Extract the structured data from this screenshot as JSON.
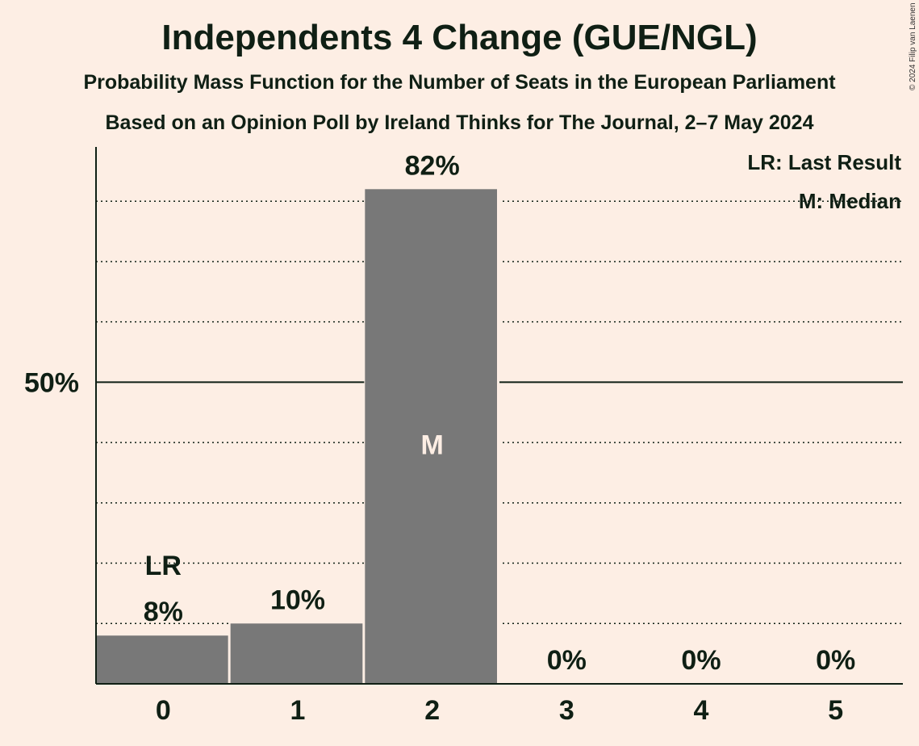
{
  "title": "Independents 4 Change (GUE/NGL)",
  "subtitle1": "Probability Mass Function for the Number of Seats in the European Parliament",
  "subtitle2": "Based on an Opinion Poll by Ireland Thinks for The Journal, 2–7 May 2024",
  "copyright": "© 2024 Filip van Laenen",
  "legend": {
    "last_result": "LR: Last Result",
    "median": "M: Median"
  },
  "colors": {
    "background": "#fdeee4",
    "bar": "#787878",
    "text": "#0f1f14"
  },
  "chart_data": {
    "type": "bar",
    "categories": [
      "0",
      "1",
      "2",
      "3",
      "4",
      "5"
    ],
    "values": [
      8,
      10,
      82,
      0,
      0,
      0
    ],
    "value_labels": [
      "8%",
      "10%",
      "82%",
      "0%",
      "0%",
      "0%"
    ],
    "ylim": [
      0,
      89
    ],
    "y_tick_labels": [
      {
        "value": 50,
        "label": "50%"
      }
    ],
    "gridlines_dotted": [
      10,
      20,
      30,
      40,
      60,
      70,
      80
    ],
    "last_result_index": 0,
    "last_result_label": "LR",
    "median_index": 2,
    "median_label": "M",
    "legend_position": "top-right"
  }
}
